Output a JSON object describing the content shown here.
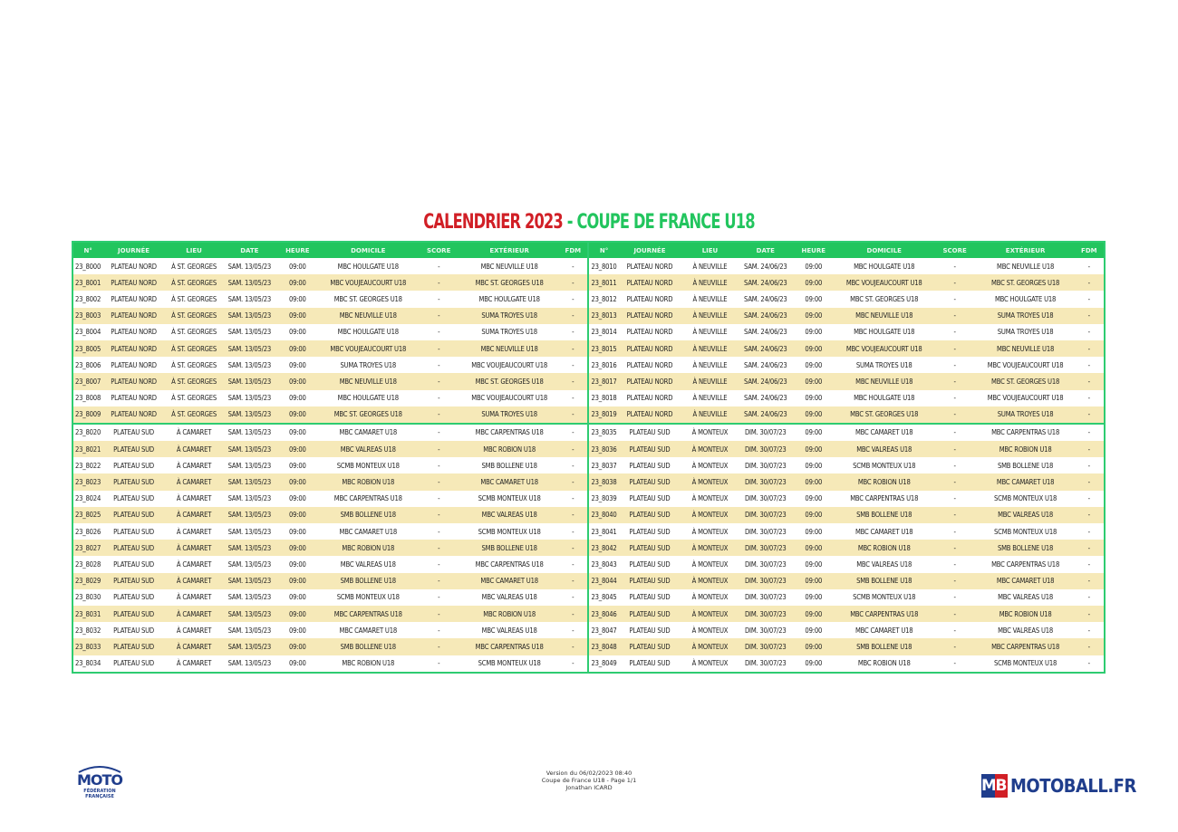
{
  "title": {
    "part1": "CALENDRIER 2023",
    "part2": "- COUPE DE FRANCE U18"
  },
  "headers": [
    "N°",
    "JOURNÉE",
    "LIEU",
    "DATE",
    "HEURE",
    "DOMICILE",
    "SCORE",
    "EXTÉRIEUR",
    "FDM",
    "N°",
    "JOURNÉE",
    "LIEU",
    "DATE",
    "HEURE",
    "DOMICILE",
    "SCORE",
    "EXTÉRIEUR",
    "FDM"
  ],
  "rows": [
    [
      "23_8000",
      "PLATEAU NORD",
      "À ST. GEORGES",
      "SAM. 13/05/23",
      "09:00",
      "MBC HOULGATE U18",
      "-",
      "MBC NEUVILLE U18",
      "-",
      "23_8010",
      "PLATEAU NORD",
      "À NEUVILLE",
      "SAM. 24/06/23",
      "09:00",
      "MBC HOULGATE U18",
      "-",
      "MBC NEUVILLE U18",
      "-"
    ],
    [
      "23_8001",
      "PLATEAU NORD",
      "À ST. GEORGES",
      "SAM. 13/05/23",
      "09:00",
      "MBC VOUJEAUCOURT U18",
      "-",
      "MBC ST. GEORGES U18",
      "-",
      "23_8011",
      "PLATEAU NORD",
      "À NEUVILLE",
      "SAM. 24/06/23",
      "09:00",
      "MBC VOUJEAUCOURT U18",
      "-",
      "MBC ST. GEORGES U18",
      "-"
    ],
    [
      "23_8002",
      "PLATEAU NORD",
      "À ST. GEORGES",
      "SAM. 13/05/23",
      "09:00",
      "MBC ST. GEORGES U18",
      "-",
      "MBC HOULGATE U18",
      "-",
      "23_8012",
      "PLATEAU NORD",
      "À NEUVILLE",
      "SAM. 24/06/23",
      "09:00",
      "MBC ST. GEORGES U18",
      "-",
      "MBC HOULGATE U18",
      "-"
    ],
    [
      "23_8003",
      "PLATEAU NORD",
      "À ST. GEORGES",
      "SAM. 13/05/23",
      "09:00",
      "MBC NEUVILLE U18",
      "-",
      "SUMA TROYES U18",
      "-",
      "23_8013",
      "PLATEAU NORD",
      "À NEUVILLE",
      "SAM. 24/06/23",
      "09:00",
      "MBC NEUVILLE U18",
      "-",
      "SUMA TROYES U18",
      "-"
    ],
    [
      "23_8004",
      "PLATEAU NORD",
      "À ST. GEORGES",
      "SAM. 13/05/23",
      "09:00",
      "MBC HOULGATE U18",
      "-",
      "SUMA TROYES U18",
      "-",
      "23_8014",
      "PLATEAU NORD",
      "À NEUVILLE",
      "SAM. 24/06/23",
      "09:00",
      "MBC HOULGATE U18",
      "-",
      "SUMA TROYES U18",
      "-"
    ],
    [
      "23_8005",
      "PLATEAU NORD",
      "À ST. GEORGES",
      "SAM. 13/05/23",
      "09:00",
      "MBC VOUJEAUCOURT U18",
      "-",
      "MBC NEUVILLE U18",
      "-",
      "23_8015",
      "PLATEAU NORD",
      "À NEUVILLE",
      "SAM. 24/06/23",
      "09:00",
      "MBC VOUJEAUCOURT U18",
      "-",
      "MBC NEUVILLE U18",
      "-"
    ],
    [
      "23_8006",
      "PLATEAU NORD",
      "À ST. GEORGES",
      "SAM. 13/05/23",
      "09:00",
      "SUMA TROYES U18",
      "-",
      "MBC VOUJEAUCOURT U18",
      "-",
      "23_8016",
      "PLATEAU NORD",
      "À NEUVILLE",
      "SAM. 24/06/23",
      "09:00",
      "SUMA TROYES U18",
      "-",
      "MBC VOUJEAUCOURT U18",
      "-"
    ],
    [
      "23_8007",
      "PLATEAU NORD",
      "À ST. GEORGES",
      "SAM. 13/05/23",
      "09:00",
      "MBC NEUVILLE U18",
      "-",
      "MBC ST. GEORGES U18",
      "-",
      "23_8017",
      "PLATEAU NORD",
      "À NEUVILLE",
      "SAM. 24/06/23",
      "09:00",
      "MBC NEUVILLE U18",
      "-",
      "MBC ST. GEORGES U18",
      "-"
    ],
    [
      "23_8008",
      "PLATEAU NORD",
      "À ST. GEORGES",
      "SAM. 13/05/23",
      "09:00",
      "MBC HOULGATE U18",
      "-",
      "MBC VOUJEAUCOURT U18",
      "-",
      "23_8018",
      "PLATEAU NORD",
      "À NEUVILLE",
      "SAM. 24/06/23",
      "09:00",
      "MBC HOULGATE U18",
      "-",
      "MBC VOUJEAUCOURT U18",
      "-"
    ],
    [
      "23_8009",
      "PLATEAU NORD",
      "À ST. GEORGES",
      "SAM. 13/05/23",
      "09:00",
      "MBC ST. GEORGES U18",
      "-",
      "SUMA TROYES U18",
      "-",
      "23_8019",
      "PLATEAU NORD",
      "À NEUVILLE",
      "SAM. 24/06/23",
      "09:00",
      "MBC ST. GEORGES U18",
      "-",
      "SUMA TROYES U18",
      "-"
    ],
    [
      "23_8020",
      "PLATEAU SUD",
      "À CAMARET",
      "SAM. 13/05/23",
      "09:00",
      "MBC CAMARET U18",
      "-",
      "MBC CARPENTRAS U18",
      "-",
      "23_8035",
      "PLATEAU SUD",
      "À MONTEUX",
      "DIM. 30/07/23",
      "09:00",
      "MBC CAMARET U18",
      "-",
      "MBC CARPENTRAS U18",
      "-"
    ],
    [
      "23_8021",
      "PLATEAU SUD",
      "À CAMARET",
      "SAM. 13/05/23",
      "09:00",
      "MBC VALREAS U18",
      "-",
      "MBC ROBION U18",
      "-",
      "23_8036",
      "PLATEAU SUD",
      "À MONTEUX",
      "DIM. 30/07/23",
      "09:00",
      "MBC VALREAS U18",
      "-",
      "MBC ROBION U18",
      "-"
    ],
    [
      "23_8022",
      "PLATEAU SUD",
      "À CAMARET",
      "SAM. 13/05/23",
      "09:00",
      "SCMB MONTEUX U18",
      "-",
      "SMB BOLLENE U18",
      "-",
      "23_8037",
      "PLATEAU SUD",
      "À MONTEUX",
      "DIM. 30/07/23",
      "09:00",
      "SCMB MONTEUX U18",
      "-",
      "SMB BOLLENE U18",
      "-"
    ],
    [
      "23_8023",
      "PLATEAU SUD",
      "À CAMARET",
      "SAM. 13/05/23",
      "09:00",
      "MBC ROBION U18",
      "-",
      "MBC CAMARET U18",
      "-",
      "23_8038",
      "PLATEAU SUD",
      "À MONTEUX",
      "DIM. 30/07/23",
      "09:00",
      "MBC ROBION U18",
      "-",
      "MBC CAMARET U18",
      "-"
    ],
    [
      "23_8024",
      "PLATEAU SUD",
      "À CAMARET",
      "SAM. 13/05/23",
      "09:00",
      "MBC CARPENTRAS U18",
      "-",
      "SCMB MONTEUX U18",
      "-",
      "23_8039",
      "PLATEAU SUD",
      "À MONTEUX",
      "DIM. 30/07/23",
      "09:00",
      "MBC CARPENTRAS U18",
      "-",
      "SCMB MONTEUX U18",
      "-"
    ],
    [
      "23_8025",
      "PLATEAU SUD",
      "À CAMARET",
      "SAM. 13/05/23",
      "09:00",
      "SMB BOLLENE U18",
      "-",
      "MBC VALREAS U18",
      "-",
      "23_8040",
      "PLATEAU SUD",
      "À MONTEUX",
      "DIM. 30/07/23",
      "09:00",
      "SMB BOLLENE U18",
      "-",
      "MBC VALREAS U18",
      "-"
    ],
    [
      "23_8026",
      "PLATEAU SUD",
      "À CAMARET",
      "SAM. 13/05/23",
      "09:00",
      "MBC CAMARET U18",
      "-",
      "SCMB MONTEUX U18",
      "-",
      "23_8041",
      "PLATEAU SUD",
      "À MONTEUX",
      "DIM. 30/07/23",
      "09:00",
      "MBC CAMARET U18",
      "-",
      "SCMB MONTEUX U18",
      "-"
    ],
    [
      "23_8027",
      "PLATEAU SUD",
      "À CAMARET",
      "SAM. 13/05/23",
      "09:00",
      "MBC ROBION U18",
      "-",
      "SMB BOLLENE U18",
      "-",
      "23_8042",
      "PLATEAU SUD",
      "À MONTEUX",
      "DIM. 30/07/23",
      "09:00",
      "MBC ROBION U18",
      "-",
      "SMB BOLLENE U18",
      "-"
    ],
    [
      "23_8028",
      "PLATEAU SUD",
      "À CAMARET",
      "SAM. 13/05/23",
      "09:00",
      "MBC VALREAS U18",
      "-",
      "MBC CARPENTRAS U18",
      "-",
      "23_8043",
      "PLATEAU SUD",
      "À MONTEUX",
      "DIM. 30/07/23",
      "09:00",
      "MBC VALREAS U18",
      "-",
      "MBC CARPENTRAS U18",
      "-"
    ],
    [
      "23_8029",
      "PLATEAU SUD",
      "À CAMARET",
      "SAM. 13/05/23",
      "09:00",
      "SMB BOLLENE U18",
      "-",
      "MBC CAMARET U18",
      "-",
      "23_8044",
      "PLATEAU SUD",
      "À MONTEUX",
      "DIM. 30/07/23",
      "09:00",
      "SMB BOLLENE U18",
      "-",
      "MBC CAMARET U18",
      "-"
    ],
    [
      "23_8030",
      "PLATEAU SUD",
      "À CAMARET",
      "SAM. 13/05/23",
      "09:00",
      "SCMB MONTEUX U18",
      "-",
      "MBC VALREAS U18",
      "-",
      "23_8045",
      "PLATEAU SUD",
      "À MONTEUX",
      "DIM. 30/07/23",
      "09:00",
      "SCMB MONTEUX U18",
      "-",
      "MBC VALREAS U18",
      "-"
    ],
    [
      "23_8031",
      "PLATEAU SUD",
      "À CAMARET",
      "SAM. 13/05/23",
      "09:00",
      "MBC CARPENTRAS U18",
      "-",
      "MBC ROBION U18",
      "-",
      "23_8046",
      "PLATEAU SUD",
      "À MONTEUX",
      "DIM. 30/07/23",
      "09:00",
      "MBC CARPENTRAS U18",
      "-",
      "MBC ROBION U18",
      "-"
    ],
    [
      "23_8032",
      "PLATEAU SUD",
      "À CAMARET",
      "SAM. 13/05/23",
      "09:00",
      "MBC CAMARET U18",
      "-",
      "MBC VALREAS U18",
      "-",
      "23_8047",
      "PLATEAU SUD",
      "À MONTEUX",
      "DIM. 30/07/23",
      "09:00",
      "MBC CAMARET U18",
      "-",
      "MBC VALREAS U18",
      "-"
    ],
    [
      "23_8033",
      "PLATEAU SUD",
      "À CAMARET",
      "SAM. 13/05/23",
      "09:00",
      "SMB BOLLENE U18",
      "-",
      "MBC CARPENTRAS U18",
      "-",
      "23_8048",
      "PLATEAU SUD",
      "À MONTEUX",
      "DIM. 30/07/23",
      "09:00",
      "SMB BOLLENE U18",
      "-",
      "MBC CARPENTRAS U18",
      "-"
    ],
    [
      "23_8034",
      "PLATEAU SUD",
      "À CAMARET",
      "SAM. 13/05/23",
      "09:00",
      "MBC ROBION U18",
      "-",
      "SCMB MONTEUX U18",
      "-",
      "23_8049",
      "PLATEAU SUD",
      "À MONTEUX",
      "DIM. 30/07/23",
      "09:00",
      "MBC ROBION U18",
      "-",
      "SCMB MONTEUX U18",
      "-"
    ]
  ],
  "footer": {
    "version": "Version du 06/02/2023 08:40",
    "page": "Coupe de France U18 - Page 1/1",
    "author": "Jonathan ICARD"
  },
  "logos": {
    "left": {
      "word": "MOTO",
      "line1": "FÉDÉRATION",
      "line2": "FRANÇAISE"
    },
    "right": {
      "m": "M",
      "b": "B",
      "text": "MOTOBALL.FR"
    }
  },
  "colors": {
    "green": "#22c55e",
    "red": "#d11f26",
    "stripe": "#f6e9b8",
    "navy": "#1f3d8c"
  }
}
